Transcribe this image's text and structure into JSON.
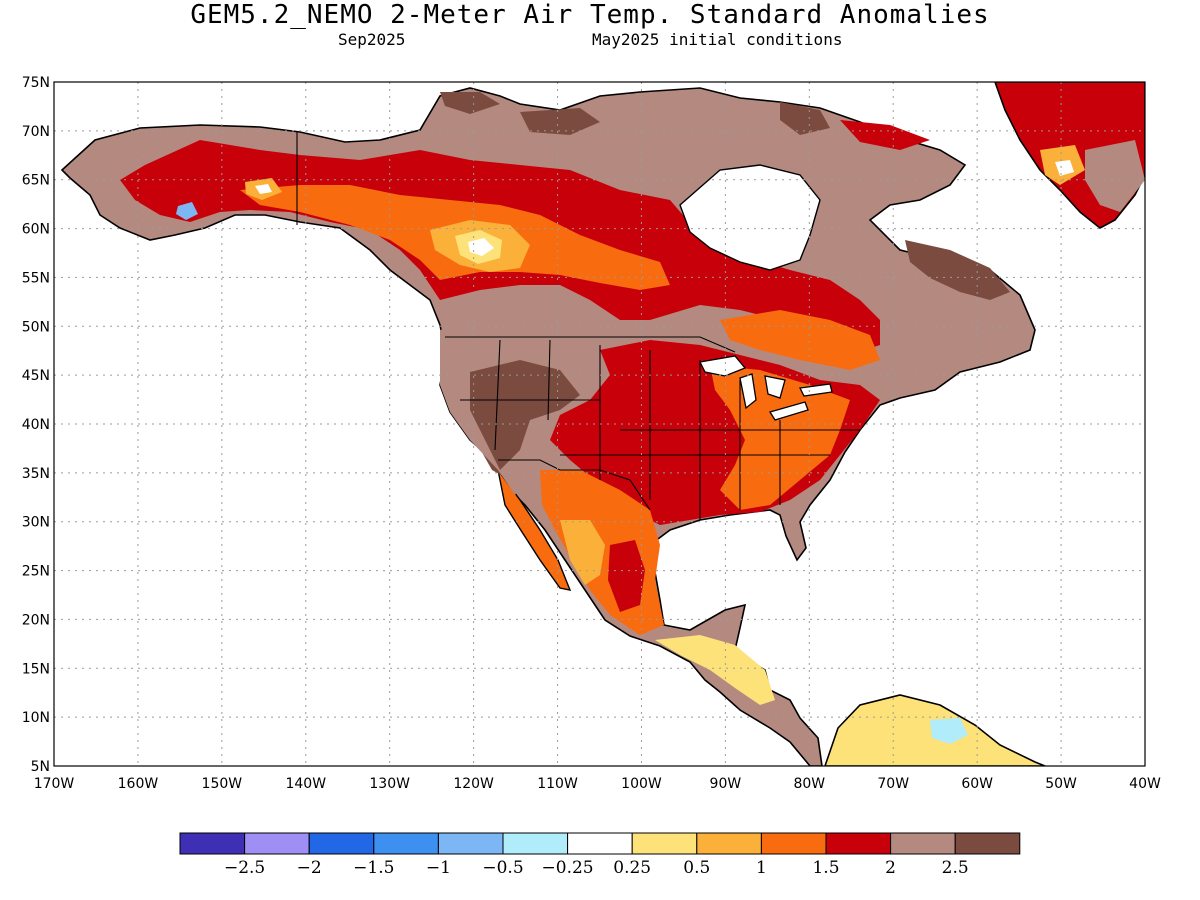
{
  "title": "GEM5.2_NEMO 2-Meter Air Temp. Standard Anomalies",
  "subtitle_left": "Sep2025",
  "subtitle_right": "May2025 initial conditions",
  "map": {
    "lon_range": [
      -170,
      -40
    ],
    "lat_range": [
      5,
      75
    ],
    "lat_ticks": [
      "75N",
      "70N",
      "65N",
      "60N",
      "55N",
      "50N",
      "45N",
      "40N",
      "35N",
      "30N",
      "25N",
      "20N",
      "15N",
      "10N",
      "5N"
    ],
    "lon_ticks": [
      "170W",
      "160W",
      "150W",
      "140W",
      "130W",
      "120W",
      "110W",
      "100W",
      "90W",
      "80W",
      "70W",
      "60W",
      "50W",
      "40W"
    ]
  },
  "colorbar": {
    "labels": [
      "−2.5",
      "−2",
      "−1.5",
      "−1",
      "−0.5",
      "−0.25",
      "0.25",
      "0.5",
      "1",
      "1.5",
      "2",
      "2.5"
    ],
    "colors": [
      "#3f2fb5",
      "#9f8ff5",
      "#2268e6",
      "#3d8ff0",
      "#7db6f5",
      "#b0ecfa",
      "#ffffff",
      "#fde27a",
      "#fbb03a",
      "#f86b0e",
      "#c8000a",
      "#b48a80",
      "#7b4b3f"
    ]
  },
  "palette": {
    "ocean": "#ffffff",
    "land_outline": "#000000",
    "grid": "#9a9a9a"
  }
}
